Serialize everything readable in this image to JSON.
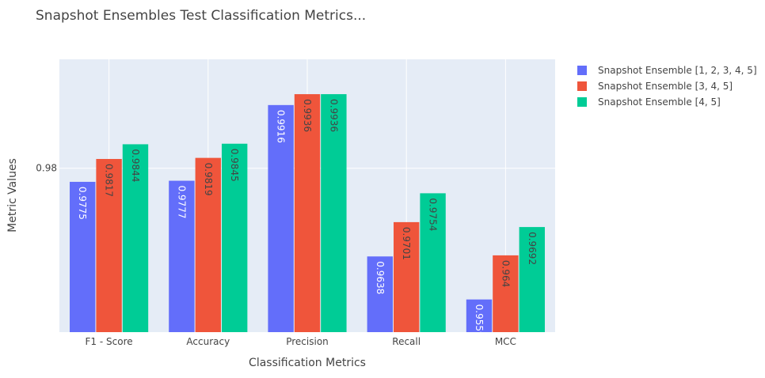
{
  "chart_data": {
    "type": "bar",
    "title": "Snapshot Ensembles Test Classification Metrics...",
    "xlabel": "Classification Metrics",
    "ylabel": "Metric Values",
    "categories": [
      "F1 - Score",
      "Accuracy",
      "Precision",
      "Recall",
      "MCC"
    ],
    "ylim": [
      0.9499,
      1.0
    ],
    "yticks": [
      0.98
    ],
    "ytick_labels": [
      "0.98"
    ],
    "grid": true,
    "legend_position": "right",
    "series": [
      {
        "name": "Snapshot Ensemble [1, 2, 3, 4, 5]",
        "color": "#636efa",
        "values": [
          0.9775,
          0.9777,
          0.9916,
          0.9638,
          0.9559
        ],
        "labels": [
          "0.9775",
          "0.9777",
          "0.9916",
          "0.9638",
          "0.9559"
        ]
      },
      {
        "name": "Snapshot Ensemble [3, 4, 5]",
        "color": "#ef553b",
        "values": [
          0.9817,
          0.9819,
          0.9936,
          0.9701,
          0.964
        ],
        "labels": [
          "0.9817",
          "0.9819",
          "0.9936",
          "0.9701",
          "0.964"
        ]
      },
      {
        "name": "Snapshot Ensemble [4, 5]",
        "color": "#00cc96",
        "values": [
          0.9844,
          0.9845,
          0.9936,
          0.9754,
          0.9692
        ],
        "labels": [
          "0.9844",
          "0.9845",
          "0.9936",
          "0.9754",
          "0.9692"
        ]
      }
    ]
  }
}
